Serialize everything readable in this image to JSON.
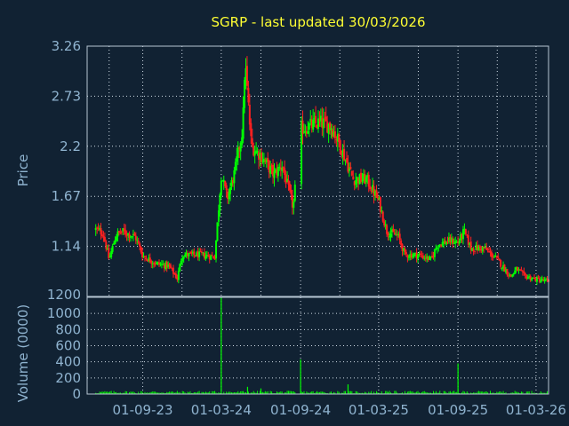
{
  "chart_data": [
    {
      "type": "candlestick",
      "title": "SGRP - last updated 30/03/2026",
      "ylabel": "Price",
      "ylim": [
        0.61,
        3.26
      ],
      "yticks": [
        "3.26",
        "2.73",
        "2.2",
        "1.67",
        "1.14"
      ],
      "grid": true,
      "colors": {
        "up": "#00ff00",
        "down": "#ff2020",
        "background": "#112233",
        "title": "#ffff33",
        "tick": "#8fb3cf"
      },
      "series": [
        {
          "date": "2023-05-15",
          "value": 1.32
        },
        {
          "date": "2023-06-01",
          "value": 1.28
        },
        {
          "date": "2023-06-15",
          "value": 1.0
        },
        {
          "date": "2023-07-01",
          "value": 1.26
        },
        {
          "date": "2023-07-15",
          "value": 1.3
        },
        {
          "date": "2023-08-15",
          "value": 1.24
        },
        {
          "date": "2023-09-01",
          "value": 1.04
        },
        {
          "date": "2023-10-01",
          "value": 0.96
        },
        {
          "date": "2023-11-01",
          "value": 0.93
        },
        {
          "date": "2023-11-20",
          "value": 0.8
        },
        {
          "date": "2023-12-01",
          "value": 1.05
        },
        {
          "date": "2024-01-15",
          "value": 1.05
        },
        {
          "date": "2024-02-15",
          "value": 1.03
        },
        {
          "date": "2024-03-01",
          "value": 1.9
        },
        {
          "date": "2024-03-15",
          "value": 1.65
        },
        {
          "date": "2024-04-01",
          "value": 1.92
        },
        {
          "date": "2024-04-20",
          "value": 2.4
        },
        {
          "date": "2024-04-25",
          "value": 3.1
        },
        {
          "date": "2024-05-10",
          "value": 2.2
        },
        {
          "date": "2024-06-01",
          "value": 2.1
        },
        {
          "date": "2024-07-01",
          "value": 1.9
        },
        {
          "date": "2024-07-20",
          "value": 2.0
        },
        {
          "date": "2024-08-15",
          "value": 1.55
        },
        {
          "date": "2024-09-01",
          "value": 2.38
        },
        {
          "date": "2024-10-15",
          "value": 2.45
        },
        {
          "date": "2024-11-10",
          "value": 2.42
        },
        {
          "date": "2024-12-01",
          "value": 2.22
        },
        {
          "date": "2025-01-01",
          "value": 1.85
        },
        {
          "date": "2025-02-01",
          "value": 1.85
        },
        {
          "date": "2025-03-01",
          "value": 1.62
        },
        {
          "date": "2025-03-20",
          "value": 1.3
        },
        {
          "date": "2025-04-15",
          "value": 1.25
        },
        {
          "date": "2025-05-01",
          "value": 1.05
        },
        {
          "date": "2025-06-01",
          "value": 1.05
        },
        {
          "date": "2025-07-01",
          "value": 1.0
        },
        {
          "date": "2025-07-15",
          "value": 1.16
        },
        {
          "date": "2025-08-15",
          "value": 1.2
        },
        {
          "date": "2025-09-01",
          "value": 1.18
        },
        {
          "date": "2025-09-15",
          "value": 1.3
        },
        {
          "date": "2025-10-01",
          "value": 1.12
        },
        {
          "date": "2025-11-01",
          "value": 1.12
        },
        {
          "date": "2025-12-01",
          "value": 1.0
        },
        {
          "date": "2026-01-01",
          "value": 0.82
        },
        {
          "date": "2026-01-15",
          "value": 0.9
        },
        {
          "date": "2026-02-01",
          "value": 0.83
        },
        {
          "date": "2026-03-01",
          "value": 0.79
        },
        {
          "date": "2026-03-30",
          "value": 0.77
        }
      ]
    },
    {
      "type": "bar",
      "ylabel": "Volume (0000)",
      "ylim": [
        0,
        1200
      ],
      "yticks": [
        "1200",
        "1000",
        "800",
        "600",
        "400",
        "200",
        "0"
      ],
      "xticks": [
        "01-09-23",
        "01-03-24",
        "01-09-24",
        "01-03-25",
        "01-09-25",
        "01-03-26"
      ],
      "grid": true,
      "spikes": [
        {
          "date": "2024-03-01",
          "value": 1200
        },
        {
          "date": "2024-09-01",
          "value": 430
        },
        {
          "date": "2024-12-20",
          "value": 120
        },
        {
          "date": "2025-09-01",
          "value": 380
        },
        {
          "date": "2024-05-01",
          "value": 90
        },
        {
          "date": "2024-06-01",
          "value": 70
        }
      ]
    }
  ]
}
